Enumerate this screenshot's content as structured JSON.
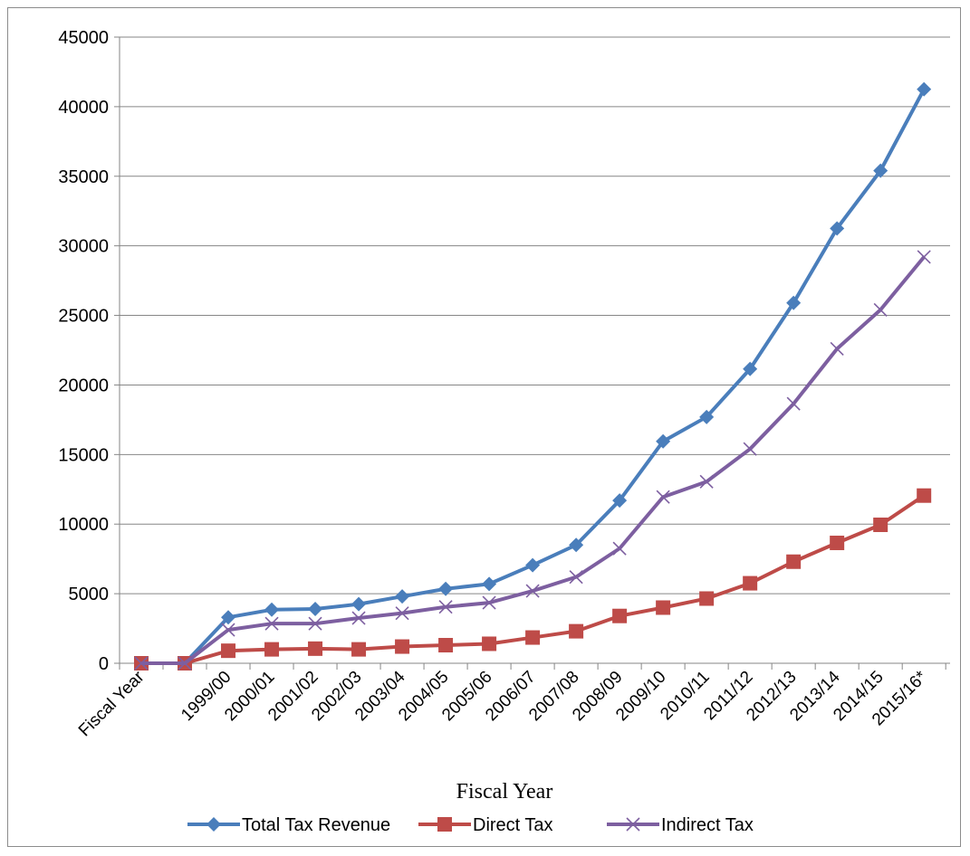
{
  "chart_data": {
    "type": "line",
    "title": "",
    "xlabel": "Fiscal Year",
    "ylabel": "",
    "ylim": [
      0,
      45000
    ],
    "yticks": [
      "0",
      "5000",
      "10000",
      "15000",
      "20000",
      "25000",
      "30000",
      "35000",
      "40000",
      "45000"
    ],
    "grid": "horizontal",
    "legend": "bottom",
    "categories": [
      "Fiscal Year",
      "",
      "1999/00",
      "2000/01",
      "2001/02",
      "2002/03",
      "2003/04",
      "2004/05",
      "2005/06",
      "2006/07",
      "2007/08",
      "2008/09",
      "2009/10",
      "2010/11",
      "2011/12",
      "2012/13",
      "2013/14",
      "2014/15",
      "2015/16*"
    ],
    "series": [
      {
        "name": "Total Tax Revenue",
        "color": "#4a7ebb",
        "marker": "diamond",
        "values": [
          0,
          0,
          3300,
          3850,
          3900,
          4250,
          4800,
          5350,
          5700,
          7050,
          8500,
          11700,
          15950,
          17700,
          21150,
          25900,
          31250,
          35400,
          41250
        ]
      },
      {
        "name": "Direct Tax",
        "color": "#be4b48",
        "marker": "square",
        "values": [
          0,
          0,
          900,
          1000,
          1050,
          1000,
          1200,
          1300,
          1400,
          1850,
          2300,
          3400,
          4000,
          4650,
          5750,
          7300,
          8650,
          9950,
          12050
        ]
      },
      {
        "name": "Indirect Tax",
        "color": "#7d5fa0",
        "marker": "x",
        "values": [
          0,
          0,
          2400,
          2850,
          2850,
          3250,
          3600,
          4050,
          4350,
          5200,
          6200,
          8250,
          11950,
          13050,
          15400,
          18650,
          22600,
          25400,
          29200
        ]
      }
    ]
  }
}
